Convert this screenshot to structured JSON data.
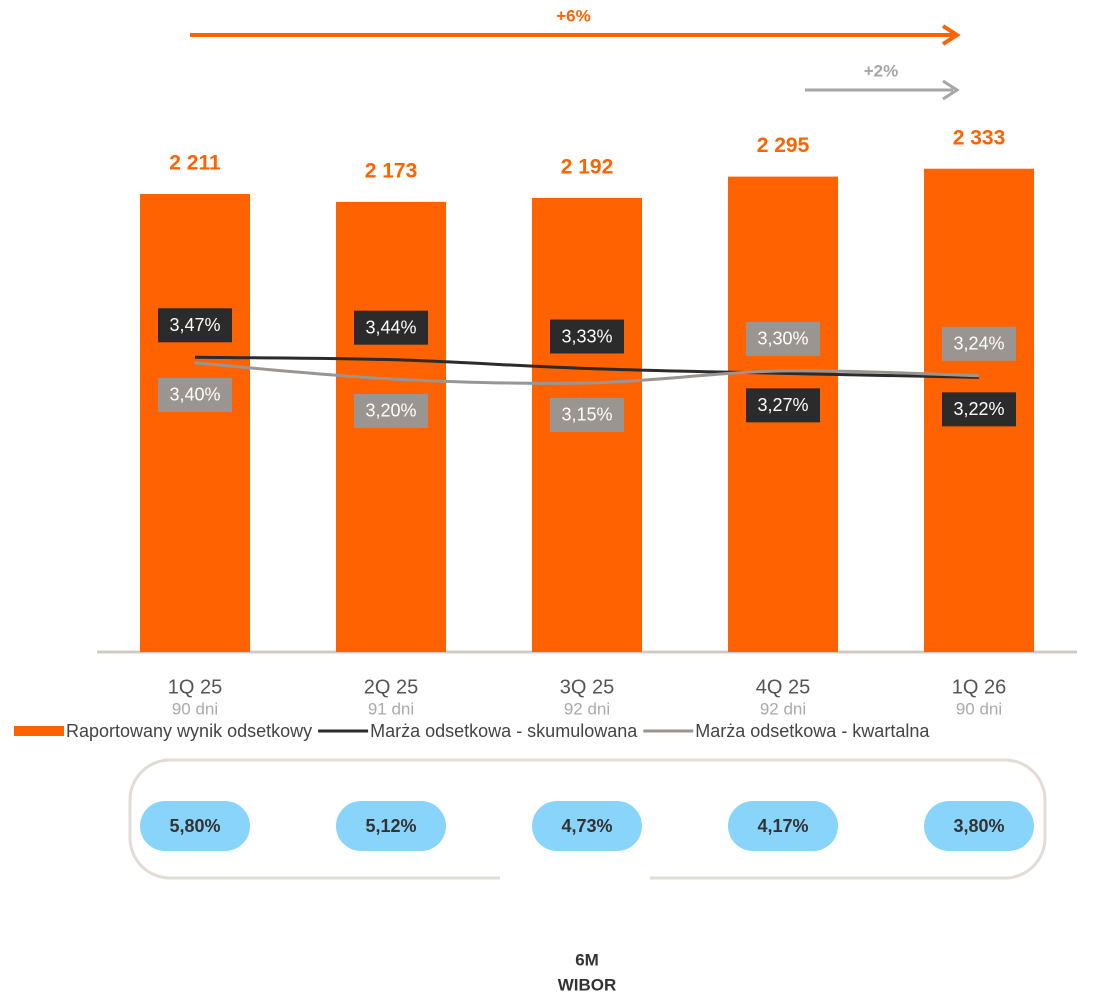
{
  "chart_data": {
    "type": "bar",
    "categories": [
      "1Q 25",
      "2Q 25",
      "3Q 25",
      "4Q 25",
      "1Q 26"
    ],
    "category_sublabels": [
      "90 dni",
      "91 dni",
      "92 dni",
      "92 dni",
      "90 dni"
    ],
    "ylim": [
      0,
      2520
    ],
    "y2lim": [
      -0.2,
      6.3
    ],
    "series": [
      {
        "name": "Raportowany wynik odsetkowy",
        "type": "bar",
        "color": "#ff6200",
        "values": [
          2211,
          2173,
          2192,
          2295,
          2333
        ],
        "value_labels": [
          "2 211",
          "2 173",
          "2 192",
          "2 295",
          "2 333"
        ]
      },
      {
        "name": "Marża odsetkowa - skumulowana",
        "type": "line",
        "axis": "y2",
        "color": "#2b2b2b",
        "values": [
          3.47,
          3.44,
          3.33,
          3.27,
          3.22
        ],
        "value_labels": [
          "3,47%",
          "3,44%",
          "3,33%",
          "3,27%",
          "3,22%"
        ]
      },
      {
        "name": "Marża odsetkowa - kwartalna",
        "type": "line",
        "axis": "y2",
        "color": "#9a9590",
        "values": [
          3.4,
          3.2,
          3.15,
          3.3,
          3.24
        ],
        "value_labels": [
          "3,40%",
          "3,20%",
          "3,15%",
          "3,30%",
          "3,24%"
        ]
      }
    ],
    "annotations": [
      {
        "text": "+6%",
        "color": "#ff6200",
        "from": 0,
        "to": 4
      },
      {
        "text": "+2%",
        "color": "#a6a6a6",
        "from": 3,
        "to": 4
      }
    ],
    "wibor": {
      "label": [
        "6M",
        "WIBOR"
      ],
      "values": [
        5.8,
        5.12,
        4.73,
        4.17,
        3.8
      ],
      "value_labels": [
        "5,80%",
        "5,12%",
        "4,73%",
        "4,17%",
        "3,80%"
      ]
    }
  }
}
